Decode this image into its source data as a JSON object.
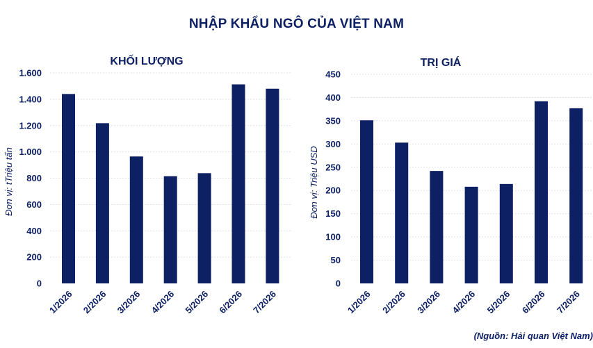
{
  "title": "NHẬP KHẨU NGÔ CỦA VIỆT NAM",
  "source": "(Nguồn: Hải quan Việt Nam)",
  "colors": {
    "bar": "#0d2063",
    "text": "#0d2063",
    "grid": "#e2e2e2"
  },
  "chart_data": [
    {
      "type": "bar",
      "title": "KHỐI LƯỢNG",
      "ylabel": "Đơn vị: tTriệu tấn",
      "categories": [
        "1/2026",
        "2/2026",
        "3/2026",
        "4/2026",
        "5/2026",
        "6/2026",
        "7/2026"
      ],
      "values": [
        1440,
        1218,
        965,
        815,
        838,
        1513,
        1480
      ],
      "ylim": [
        0,
        1600
      ],
      "yticks": [
        0,
        200,
        400,
        600,
        800,
        1000,
        1200,
        1400,
        1600
      ],
      "ytick_labels": [
        "0",
        "200",
        "400",
        "600",
        "800",
        "1.000",
        "1.200",
        "1.400",
        "1.600"
      ],
      "grid": true,
      "legend": "none"
    },
    {
      "type": "bar",
      "title": "TRỊ GIÁ",
      "ylabel": "Đơn vị: Triệu USD",
      "categories": [
        "1/2026",
        "2/2026",
        "3/2026",
        "4/2026",
        "5/2026",
        "6/2026",
        "7/2026"
      ],
      "values": [
        351,
        303,
        242,
        208,
        214,
        392,
        377
      ],
      "ylim": [
        0,
        450
      ],
      "yticks": [
        0,
        50,
        100,
        150,
        200,
        250,
        300,
        350,
        400,
        450
      ],
      "ytick_labels": [
        "0",
        "50",
        "100",
        "150",
        "200",
        "250",
        "300",
        "350",
        "400",
        "450"
      ],
      "grid": true,
      "legend": "none"
    }
  ]
}
